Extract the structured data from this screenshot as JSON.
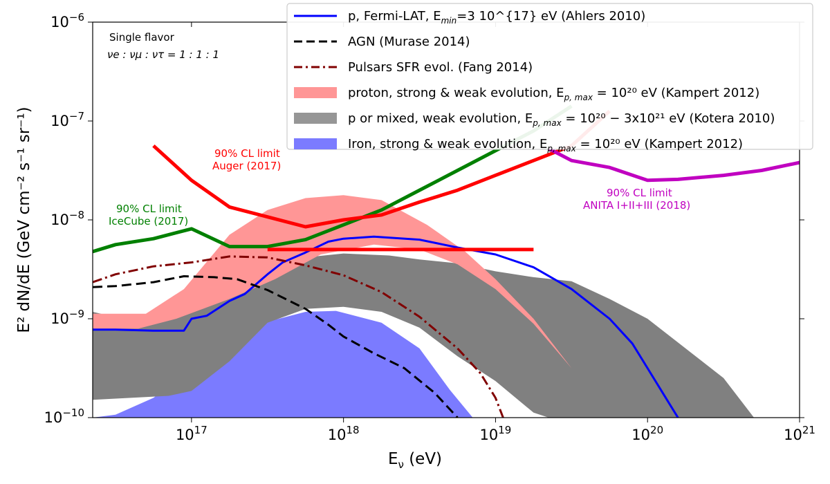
{
  "chart_data": {
    "type": "line",
    "xlabel": "E",
    "xlabel_sub": "ν",
    "xlabel_unit": " (eV)",
    "ylabel": "E² dN/dE (GeV cm⁻² s⁻¹ sr⁻¹)",
    "xscale": "log",
    "yscale": "log",
    "xlim": [
      16.35,
      21
    ],
    "ylim": [
      -10,
      -6
    ],
    "x_ticks": [
      17,
      18,
      19,
      20,
      21
    ],
    "y_ticks": [
      -10,
      -9,
      -8,
      -7,
      -6
    ],
    "tick_base": "10",
    "annotations": {
      "single_flavor": "Single flavor",
      "flavor_ratio": "νe : νμ : ντ = 1 : 1 : 1",
      "auger_line1": "90% CL limit",
      "auger_line2": "Auger (2017)",
      "icecube_line1": "90% CL limit",
      "icecube_line2": "IceCube (2017)",
      "anita_line1": "90% CL limit",
      "anita_line2": "ANITA I+II+III (2018)"
    },
    "bands": [
      {
        "name": "Iron, strong & weak evolution, E_p,max=10^20 eV (Kampert 2012)",
        "color": "#7b7bff",
        "lower": [
          [
            16.35,
            -10
          ],
          [
            19.0,
            -10
          ]
        ],
        "upper": [
          [
            16.35,
            -10.0
          ],
          [
            16.5,
            -9.97
          ],
          [
            16.75,
            -9.8
          ],
          [
            17.0,
            -9.52
          ],
          [
            17.25,
            -9.25
          ],
          [
            17.5,
            -9.03
          ],
          [
            17.75,
            -8.93
          ],
          [
            17.95,
            -8.92
          ],
          [
            18.25,
            -9.04
          ],
          [
            18.5,
            -9.3
          ],
          [
            18.7,
            -9.72
          ],
          [
            18.85,
            -10.0
          ]
        ]
      },
      {
        "name": "p or mixed, weak evolution, E_p,max = 10^20 − 3x10^21 eV (Kotera 2010)",
        "color": "#808080",
        "lower": [
          [
            16.35,
            -9.82
          ],
          [
            16.6,
            -9.8
          ],
          [
            16.85,
            -9.78
          ],
          [
            17.0,
            -9.73
          ],
          [
            17.25,
            -9.43
          ],
          [
            17.5,
            -9.04
          ],
          [
            17.75,
            -8.9
          ],
          [
            18.0,
            -8.88
          ],
          [
            18.25,
            -8.93
          ],
          [
            18.5,
            -9.09
          ],
          [
            18.75,
            -9.38
          ],
          [
            19.0,
            -9.63
          ],
          [
            19.25,
            -9.95
          ],
          [
            19.35,
            -10.0
          ]
        ],
        "upper": [
          [
            16.35,
            -8.93
          ],
          [
            16.6,
            -9.02
          ],
          [
            16.85,
            -8.98
          ],
          [
            17.0,
            -8.9
          ],
          [
            17.25,
            -8.78
          ],
          [
            17.5,
            -8.5
          ],
          [
            17.75,
            -8.38
          ],
          [
            18.0,
            -8.34
          ],
          [
            18.3,
            -8.36
          ],
          [
            18.5,
            -8.4
          ],
          [
            18.75,
            -8.44
          ],
          [
            19.0,
            -8.52
          ],
          [
            19.25,
            -8.58
          ],
          [
            19.5,
            -8.62
          ],
          [
            19.75,
            -8.8
          ],
          [
            20.0,
            -9.0
          ],
          [
            20.25,
            -9.3
          ],
          [
            20.5,
            -9.6
          ],
          [
            20.7,
            -10.0
          ]
        ]
      },
      {
        "name": "proton, strong & weak evolution, E_p,max=10^20 eV (Kampert 2012)",
        "color": "#ff9696",
        "lower": [
          [
            16.35,
            -9.1
          ],
          [
            16.65,
            -9.1
          ],
          [
            16.9,
            -9.0
          ],
          [
            17.25,
            -8.8
          ],
          [
            17.55,
            -8.6
          ],
          [
            17.85,
            -8.35
          ],
          [
            18.2,
            -8.25
          ],
          [
            18.5,
            -8.3
          ],
          [
            18.75,
            -8.45
          ],
          [
            19.0,
            -8.7
          ],
          [
            19.25,
            -9.05
          ],
          [
            19.5,
            -9.5
          ],
          [
            19.75,
            -10.0
          ]
        ],
        "upper": [
          [
            16.35,
            -8.95
          ],
          [
            16.7,
            -8.95
          ],
          [
            16.95,
            -8.7
          ],
          [
            17.25,
            -8.15
          ],
          [
            17.5,
            -7.9
          ],
          [
            17.75,
            -7.78
          ],
          [
            18.0,
            -7.75
          ],
          [
            18.25,
            -7.8
          ],
          [
            18.55,
            -8.05
          ],
          [
            18.8,
            -8.32
          ],
          [
            19.0,
            -8.6
          ],
          [
            19.25,
            -9.0
          ],
          [
            19.5,
            -9.5
          ],
          [
            19.75,
            -10.0
          ]
        ]
      }
    ],
    "series": [
      {
        "name": "p, Fermi-LAT, E_min=3 10^{17} eV (Ahlers 2010)",
        "color": "#0000ff",
        "width": 3,
        "dash": "",
        "points": [
          [
            16.35,
            -9.11
          ],
          [
            16.5,
            -9.11
          ],
          [
            16.75,
            -9.12
          ],
          [
            16.95,
            -9.12
          ],
          [
            17.0,
            -9.0
          ],
          [
            17.1,
            -8.97
          ],
          [
            17.25,
            -8.82
          ],
          [
            17.35,
            -8.75
          ],
          [
            17.5,
            -8.55
          ],
          [
            17.6,
            -8.43
          ],
          [
            17.75,
            -8.33
          ],
          [
            17.9,
            -8.22
          ],
          [
            18.0,
            -8.19
          ],
          [
            18.2,
            -8.17
          ],
          [
            18.5,
            -8.2
          ],
          [
            18.75,
            -8.28
          ],
          [
            19.0,
            -8.35
          ],
          [
            19.25,
            -8.48
          ],
          [
            19.5,
            -8.7
          ],
          [
            19.75,
            -9.0
          ],
          [
            19.9,
            -9.25
          ],
          [
            20.0,
            -9.5
          ],
          [
            20.1,
            -9.75
          ],
          [
            20.2,
            -10.0
          ]
        ]
      },
      {
        "name": "AGN (Murase 2014)",
        "color": "#000000",
        "width": 3,
        "dash": "14,7",
        "points": [
          [
            16.35,
            -8.68
          ],
          [
            16.5,
            -8.67
          ],
          [
            16.75,
            -8.63
          ],
          [
            16.95,
            -8.57
          ],
          [
            17.15,
            -8.58
          ],
          [
            17.3,
            -8.6
          ],
          [
            17.5,
            -8.71
          ],
          [
            17.75,
            -8.9
          ],
          [
            17.9,
            -9.06
          ],
          [
            18.0,
            -9.18
          ],
          [
            18.2,
            -9.35
          ],
          [
            18.4,
            -9.5
          ],
          [
            18.6,
            -9.75
          ],
          [
            18.75,
            -10.0
          ]
        ]
      },
      {
        "name": "Pulsars SFR evol. (Fang 2014)",
        "color": "#800000",
        "width": 3,
        "dash": "14,5,3,5",
        "points": [
          [
            16.35,
            -8.63
          ],
          [
            16.5,
            -8.55
          ],
          [
            16.75,
            -8.47
          ],
          [
            17.0,
            -8.43
          ],
          [
            17.25,
            -8.37
          ],
          [
            17.5,
            -8.38
          ],
          [
            17.75,
            -8.46
          ],
          [
            18.0,
            -8.56
          ],
          [
            18.25,
            -8.73
          ],
          [
            18.5,
            -8.98
          ],
          [
            18.75,
            -9.3
          ],
          [
            18.9,
            -9.55
          ],
          [
            19.0,
            -9.8
          ],
          [
            19.05,
            -10.0
          ]
        ]
      },
      {
        "name": "90% CL limit IceCube (2017)",
        "color": "#008000",
        "width": 5,
        "dash": "",
        "legend": false,
        "points": [
          [
            16.35,
            -8.32
          ],
          [
            16.5,
            -8.25
          ],
          [
            16.75,
            -8.19
          ],
          [
            17.0,
            -8.09
          ],
          [
            17.25,
            -8.27
          ],
          [
            17.5,
            -8.27
          ],
          [
            17.75,
            -8.2
          ],
          [
            18.0,
            -8.05
          ],
          [
            18.25,
            -7.9
          ],
          [
            18.5,
            -7.7
          ],
          [
            18.75,
            -7.5
          ],
          [
            19.0,
            -7.3
          ],
          [
            19.25,
            -7.1
          ],
          [
            19.5,
            -6.85
          ]
        ]
      },
      {
        "name": "90% CL limit Auger (2017)",
        "color": "#ff0000",
        "width": 5,
        "dash": "",
        "legend": false,
        "points": [
          [
            16.75,
            -7.25
          ],
          [
            17.0,
            -7.6
          ],
          [
            17.25,
            -7.87
          ],
          [
            17.5,
            -7.97
          ],
          [
            17.75,
            -8.07
          ],
          [
            18.0,
            -8.0
          ],
          [
            18.25,
            -7.95
          ],
          [
            18.5,
            -7.82
          ],
          [
            18.75,
            -7.7
          ],
          [
            19.0,
            -7.55
          ],
          [
            19.25,
            -7.4
          ],
          [
            19.5,
            -7.25
          ],
          [
            19.75,
            -6.9
          ]
        ]
      },
      {
        "name": "90% CL limit ANITA I+II+III (2018)",
        "color": "#c000c0",
        "width": 5,
        "dash": "",
        "legend": false,
        "points": [
          [
            19.35,
            -7.28
          ],
          [
            19.5,
            -7.4
          ],
          [
            19.75,
            -7.47
          ],
          [
            20.0,
            -7.6
          ],
          [
            20.2,
            -7.59
          ],
          [
            20.5,
            -7.55
          ],
          [
            20.75,
            -7.5
          ],
          [
            21.0,
            -7.42
          ]
        ]
      },
      {
        "name": "Auger horizontal limit",
        "color": "#ff0000",
        "width": 5,
        "dash": "",
        "legend": false,
        "points": [
          [
            17.5,
            -8.3
          ],
          [
            19.25,
            -8.3
          ]
        ]
      }
    ],
    "legend": [
      {
        "kind": "line",
        "color": "#0000ff",
        "dash": "",
        "pre": "p, Fermi-LAT, E",
        "sub": "min",
        "post": "=3 10^{17} eV (Ahlers 2010)"
      },
      {
        "kind": "line",
        "color": "#000000",
        "dash": "12,6",
        "pre": "AGN (Murase 2014)",
        "sub": "",
        "post": ""
      },
      {
        "kind": "line",
        "color": "#800000",
        "dash": "12,5,3,5",
        "pre": "Pulsars SFR evol. (Fang 2014)",
        "sub": "",
        "post": ""
      },
      {
        "kind": "patch",
        "color": "#ff9696",
        "pre": "proton, strong & weak evolution, E",
        "sub": "p, max",
        "post": " = 10²⁰ eV (Kampert 2012)"
      },
      {
        "kind": "patch",
        "color": "#969696",
        "pre": "p or mixed, weak evolution, E",
        "sub": "p, max",
        "post": " = 10²⁰ − 3x10²¹ eV (Kotera 2010)"
      },
      {
        "kind": "patch",
        "color": "#7b7bff",
        "pre": "Iron, strong & weak evolution, E",
        "sub": "p, max",
        "post": " = 10²⁰ eV (Kampert 2012)"
      }
    ]
  }
}
